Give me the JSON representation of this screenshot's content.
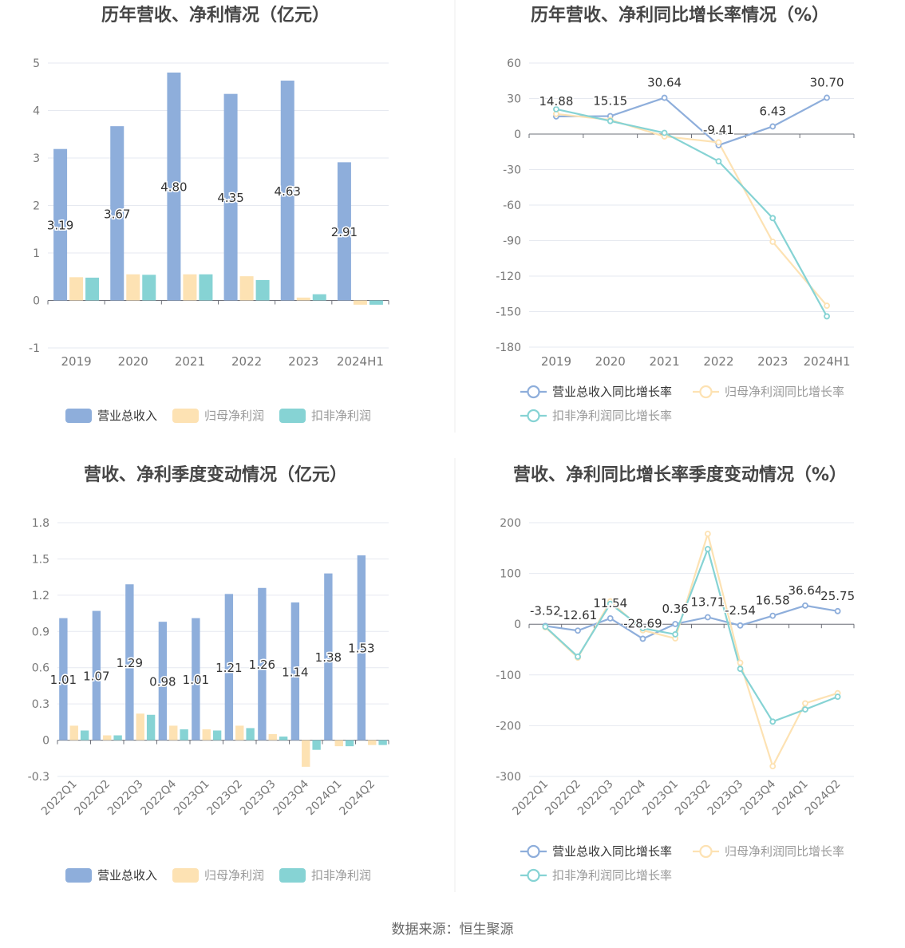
{
  "source": "数据来源：恒生聚源",
  "colors": {
    "revenue": "#8eaedb",
    "netprofit": "#fde2b3",
    "deducted": "#86d3d4",
    "grid": "#e6e9f0",
    "axis": "#6e7079",
    "title": "#464646",
    "tick": "#777777"
  },
  "chart_data": [
    {
      "id": "annual-bar",
      "type": "bar",
      "title": "历年营收、净利情况（亿元）",
      "categories": [
        "2019",
        "2020",
        "2021",
        "2022",
        "2023",
        "2024H1"
      ],
      "series": [
        {
          "name": "营业总收入",
          "values": [
            3.19,
            3.67,
            4.8,
            4.35,
            4.63,
            2.91
          ],
          "labels": [
            "3.19",
            "3.67",
            "4.80",
            "4.35",
            "4.63",
            "2.91"
          ]
        },
        {
          "name": "归母净利润",
          "values": [
            0.49,
            0.55,
            0.55,
            0.51,
            0.06,
            -0.09
          ]
        },
        {
          "name": "扣非净利润",
          "values": [
            0.48,
            0.54,
            0.55,
            0.43,
            0.13,
            -0.09
          ]
        }
      ],
      "ylim": [
        -1,
        5
      ],
      "yticks": [
        "-1",
        "0",
        "1",
        "2",
        "3",
        "4",
        "5"
      ],
      "grid": true,
      "legend": "bottom"
    },
    {
      "id": "annual-line",
      "type": "line",
      "title": "历年营收、净利同比增长率情况（%）",
      "categories": [
        "2019",
        "2020",
        "2021",
        "2022",
        "2023",
        "2024H1"
      ],
      "series": [
        {
          "name": "营业总收入同比增长率",
          "values": [
            14.88,
            15.15,
            30.64,
            -9.41,
            6.43,
            30.7
          ],
          "labels": [
            "14.88",
            "15.15",
            "30.64",
            "-9.41",
            "6.43",
            "30.70"
          ]
        },
        {
          "name": "归母净利润同比增长率",
          "values": [
            17,
            12,
            -2,
            -7,
            -91,
            -145
          ]
        },
        {
          "name": "扣非净利润同比增长率",
          "values": [
            21,
            11,
            1,
            -23,
            -71,
            -154
          ]
        }
      ],
      "ylim": [
        -180,
        60
      ],
      "yticks": [
        "-180",
        "-150",
        "-120",
        "-90",
        "-60",
        "-30",
        "0",
        "30",
        "60"
      ],
      "grid": true,
      "legend": "bottom"
    },
    {
      "id": "quarter-bar",
      "type": "bar",
      "title": "营收、净利季度变动情况（亿元）",
      "categories": [
        "2022Q1",
        "2022Q2",
        "2022Q3",
        "2022Q4",
        "2023Q1",
        "2023Q2",
        "2023Q3",
        "2023Q4",
        "2024Q1",
        "2024Q2"
      ],
      "series": [
        {
          "name": "营业总收入",
          "values": [
            1.01,
            1.07,
            1.29,
            0.98,
            1.01,
            1.21,
            1.26,
            1.14,
            1.38,
            1.53
          ],
          "labels": [
            "1.01",
            "1.07",
            "1.29",
            "0.98",
            "1.01",
            "1.21",
            "1.26",
            "1.14",
            "1.38",
            "1.53"
          ]
        },
        {
          "name": "归母净利润",
          "values": [
            0.12,
            0.04,
            0.22,
            0.12,
            0.09,
            0.12,
            0.05,
            -0.22,
            -0.05,
            -0.04
          ]
        },
        {
          "name": "扣非净利润",
          "values": [
            0.08,
            0.04,
            0.21,
            0.09,
            0.08,
            0.1,
            0.03,
            -0.08,
            -0.05,
            -0.04
          ]
        }
      ],
      "ylim": [
        -0.3,
        1.8
      ],
      "yticks": [
        "-0.3",
        "0",
        "0.3",
        "0.6",
        "0.9",
        "1.2",
        "1.5",
        "1.8"
      ],
      "grid": true,
      "legend": "bottom"
    },
    {
      "id": "quarter-line",
      "type": "line",
      "title": "营收、净利同比增长率季度变动情况（%）",
      "categories": [
        "2022Q1",
        "2022Q2",
        "2022Q3",
        "2022Q4",
        "2023Q1",
        "2023Q2",
        "2023Q3",
        "2023Q4",
        "2024Q1",
        "2024Q2"
      ],
      "series": [
        {
          "name": "营业总收入同比增长率",
          "values": [
            -3.52,
            -12.61,
            11.54,
            -28.69,
            0.36,
            13.71,
            -2.54,
            16.58,
            36.64,
            25.75
          ],
          "labels": [
            "-3.52",
            "-12.61",
            "11.54",
            "-28.69",
            "0.36",
            "13.71",
            "-2.54",
            "16.58",
            "36.64",
            "25.75"
          ]
        },
        {
          "name": "归母净利润同比增长率",
          "values": [
            -6,
            -66,
            45,
            -12,
            -28,
            178,
            -76,
            -280,
            -156,
            -136
          ]
        },
        {
          "name": "扣非净利润同比增长率",
          "values": [
            -5,
            -64,
            40,
            -8,
            -20,
            148,
            -88,
            -192,
            -168,
            -143
          ]
        }
      ],
      "ylim": [
        -300,
        200
      ],
      "yticks": [
        "-300",
        "-200",
        "-100",
        "0",
        "100",
        "200"
      ],
      "grid": true,
      "legend": "bottom"
    }
  ]
}
